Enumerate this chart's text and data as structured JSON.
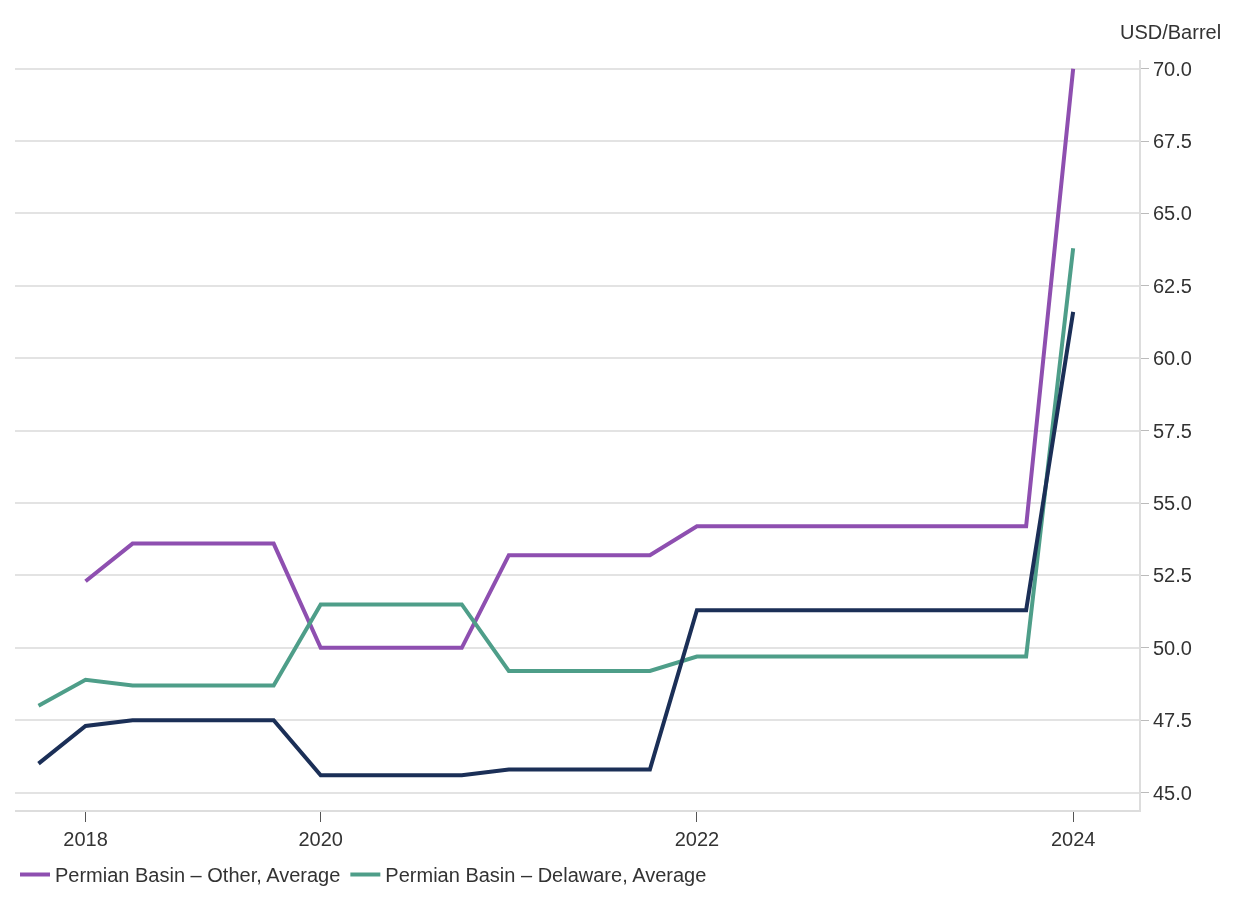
{
  "chart_data": {
    "type": "line",
    "ylabel": "USD/Barrel",
    "categories": [
      null,
      "2018",
      null,
      null,
      null,
      null,
      "2020",
      null,
      null,
      null,
      null,
      null,
      null,
      null,
      "2022",
      null,
      null,
      null,
      null,
      null,
      null,
      null,
      "2024"
    ],
    "series": [
      {
        "name": "Permian Basin – Other, Average",
        "color": "#8e4fb0",
        "values": [
          null,
          52.3,
          53.6,
          53.6,
          53.6,
          53.6,
          50.0,
          50.0,
          50.0,
          50.0,
          53.2,
          53.2,
          53.2,
          53.2,
          54.2,
          54.2,
          54.2,
          54.2,
          54.2,
          54.2,
          54.2,
          54.2,
          70.0
        ]
      },
      {
        "name": "Permian Basin – Delaware, Average",
        "color": "#4e9e89",
        "values": [
          48.0,
          48.9,
          48.7,
          48.7,
          48.7,
          48.7,
          51.5,
          51.5,
          51.5,
          51.5,
          49.2,
          49.2,
          49.2,
          49.2,
          49.7,
          49.7,
          49.7,
          49.7,
          49.7,
          49.7,
          49.7,
          49.7,
          63.8
        ]
      },
      {
        "color": "#1b2f57",
        "values": [
          46.0,
          47.3,
          47.5,
          47.5,
          47.5,
          47.5,
          45.6,
          45.6,
          45.6,
          45.6,
          45.8,
          45.8,
          45.8,
          45.8,
          51.3,
          51.3,
          51.3,
          51.3,
          51.3,
          51.3,
          51.3,
          51.3,
          61.6
        ]
      }
    ],
    "ylim": [
      44.4,
      70.3
    ],
    "yticks": [
      {
        "value": 45,
        "label": "45.0"
      },
      {
        "value": 47.5,
        "label": "47.5"
      },
      {
        "value": 50,
        "label": "50.0"
      },
      {
        "value": 52.5,
        "label": "52.5"
      },
      {
        "value": 55,
        "label": "55.0"
      },
      {
        "value": 57.5,
        "label": "57.5"
      },
      {
        "value": 60,
        "label": "60.0"
      },
      {
        "value": 62.5,
        "label": "62.5"
      },
      {
        "value": 65,
        "label": "65.0"
      },
      {
        "value": 67.5,
        "label": "67.5"
      },
      {
        "value": 70,
        "label": "70.0"
      }
    ],
    "grid": "y",
    "legend": "bottom",
    "line_style": "solid",
    "marker": "none"
  }
}
